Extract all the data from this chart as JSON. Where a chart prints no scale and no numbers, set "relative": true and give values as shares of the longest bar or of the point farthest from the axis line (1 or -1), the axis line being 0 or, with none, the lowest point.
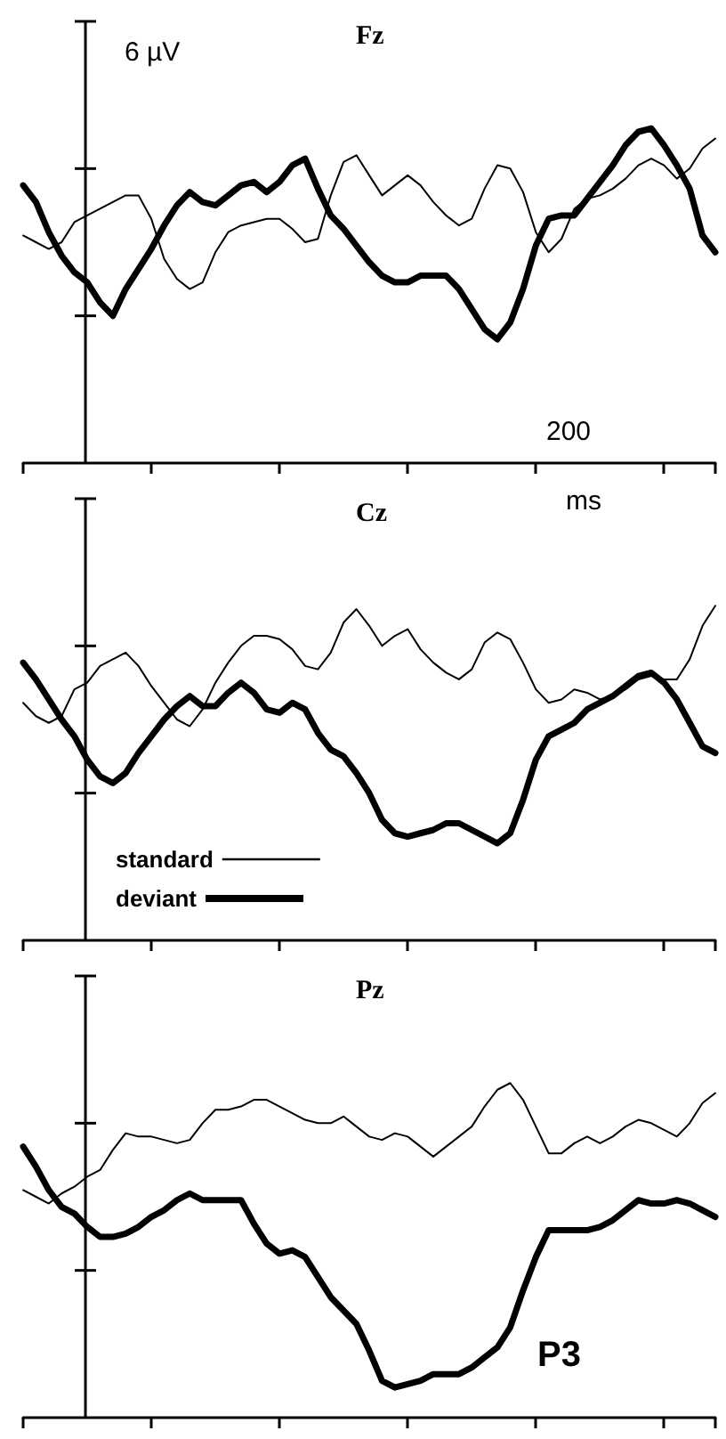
{
  "chart_data": [
    {
      "type": "line",
      "title": "Fz",
      "relative": true,
      "annotations": [
        "6 µV",
        "200"
      ],
      "categories": [
        null,
        null,
        null,
        null,
        null,
        null,
        null,
        null,
        null,
        null,
        null,
        null,
        null,
        null,
        null,
        null,
        null,
        null,
        null,
        null,
        null,
        null,
        null,
        null,
        null,
        null,
        null,
        null,
        null,
        null,
        null,
        null,
        null,
        null,
        null,
        null,
        null,
        null,
        null,
        null,
        null,
        null,
        null,
        null,
        null,
        null,
        null,
        null,
        null,
        null,
        null,
        null,
        null,
        null,
        null
      ],
      "series": [
        {
          "color": "#000000",
          "values": [
            0.68,
            0.66,
            0.64,
            0.66,
            0.72,
            0.74,
            0.76,
            0.78,
            0.8,
            0.8,
            0.73,
            0.61,
            0.55,
            0.52,
            0.54,
            0.63,
            0.69,
            0.71,
            0.72,
            0.73,
            0.73,
            0.7,
            0.66,
            0.67,
            0.8,
            0.9,
            0.92,
            0.86,
            0.8,
            0.83,
            0.86,
            0.83,
            0.78,
            0.74,
            0.71,
            0.73,
            0.82,
            0.89,
            0.88,
            0.81,
            0.69,
            0.63,
            0.67,
            0.76,
            0.79,
            0.8,
            0.82,
            0.85,
            0.89,
            0.91,
            0.89,
            0.85,
            0.88,
            0.94,
            0.97
          ]
        },
        {
          "color": "#000000",
          "values": [
            0.83,
            0.78,
            0.69,
            0.62,
            0.57,
            0.54,
            0.48,
            0.44,
            0.52,
            0.58,
            0.64,
            0.71,
            0.77,
            0.81,
            0.78,
            0.77,
            0.8,
            0.83,
            0.84,
            0.81,
            0.84,
            0.89,
            0.91,
            0.82,
            0.74,
            0.7,
            0.65,
            0.6,
            0.56,
            0.54,
            0.54,
            0.56,
            0.56,
            0.56,
            0.52,
            0.46,
            0.4,
            0.37,
            0.42,
            0.52,
            0.65,
            0.73,
            0.74,
            0.74,
            0.79,
            0.84,
            0.89,
            0.95,
            0.99,
            1.0,
            0.95,
            0.89,
            0.82,
            0.68,
            0.63
          ]
        }
      ]
    },
    {
      "type": "line",
      "title": "Cz",
      "relative": true,
      "legend": "bottom left",
      "annotations": [
        "ms"
      ],
      "categories": [
        null,
        null,
        null,
        null,
        null,
        null,
        null,
        null,
        null,
        null,
        null,
        null,
        null,
        null,
        null,
        null,
        null,
        null,
        null,
        null,
        null,
        null,
        null,
        null,
        null,
        null,
        null,
        null,
        null,
        null,
        null,
        null,
        null,
        null,
        null,
        null,
        null,
        null,
        null,
        null,
        null,
        null,
        null,
        null,
        null,
        null,
        null,
        null,
        null,
        null,
        null,
        null,
        null,
        null,
        null
      ],
      "series": [
        {
          "name": "standard",
          "color": "#000000",
          "values": [
            0.71,
            0.67,
            0.65,
            0.67,
            0.75,
            0.77,
            0.82,
            0.84,
            0.86,
            0.82,
            0.76,
            0.71,
            0.66,
            0.64,
            0.69,
            0.77,
            0.83,
            0.88,
            0.91,
            0.91,
            0.9,
            0.87,
            0.82,
            0.81,
            0.86,
            0.95,
            0.99,
            0.94,
            0.88,
            0.91,
            0.93,
            0.87,
            0.83,
            0.8,
            0.78,
            0.81,
            0.89,
            0.92,
            0.9,
            0.83,
            0.75,
            0.71,
            0.72,
            0.75,
            0.74,
            0.72,
            0.73,
            0.75,
            0.78,
            0.79,
            0.78,
            0.78,
            0.84,
            0.94,
            1.0
          ]
        },
        {
          "name": "deviant",
          "color": "#000000",
          "values": [
            0.83,
            0.78,
            0.72,
            0.66,
            0.61,
            0.54,
            0.49,
            0.47,
            0.5,
            0.56,
            0.61,
            0.66,
            0.7,
            0.73,
            0.7,
            0.7,
            0.74,
            0.77,
            0.74,
            0.69,
            0.68,
            0.71,
            0.69,
            0.62,
            0.57,
            0.55,
            0.5,
            0.44,
            0.36,
            0.32,
            0.31,
            0.32,
            0.33,
            0.35,
            0.35,
            0.33,
            0.31,
            0.29,
            0.32,
            0.42,
            0.54,
            0.61,
            0.63,
            0.65,
            0.69,
            0.71,
            0.73,
            0.76,
            0.79,
            0.8,
            0.77,
            0.72,
            0.65,
            0.58,
            0.56
          ]
        }
      ]
    },
    {
      "type": "line",
      "title": "Pz",
      "relative": true,
      "annotations": [
        "P3"
      ],
      "categories": [
        null,
        null,
        null,
        null,
        null,
        null,
        null,
        null,
        null,
        null,
        null,
        null,
        null,
        null,
        null,
        null,
        null,
        null,
        null,
        null,
        null,
        null,
        null,
        null,
        null,
        null,
        null,
        null,
        null,
        null,
        null,
        null,
        null,
        null,
        null,
        null,
        null,
        null,
        null,
        null,
        null,
        null,
        null,
        null,
        null,
        null,
        null,
        null,
        null,
        null,
        null,
        null,
        null,
        null,
        null
      ],
      "series": [
        {
          "color": "#000000",
          "values": [
            0.68,
            0.66,
            0.64,
            0.67,
            0.69,
            0.72,
            0.74,
            0.8,
            0.85,
            0.84,
            0.84,
            0.83,
            0.82,
            0.83,
            0.88,
            0.92,
            0.92,
            0.93,
            0.95,
            0.95,
            0.93,
            0.91,
            0.89,
            0.88,
            0.88,
            0.9,
            0.87,
            0.84,
            0.83,
            0.85,
            0.84,
            0.81,
            0.78,
            0.81,
            0.84,
            0.87,
            0.93,
            0.98,
            1.0,
            0.95,
            0.87,
            0.79,
            0.79,
            0.82,
            0.84,
            0.82,
            0.84,
            0.87,
            0.89,
            0.88,
            0.86,
            0.84,
            0.88,
            0.94,
            0.97
          ]
        },
        {
          "color": "#000000",
          "values": [
            0.81,
            0.75,
            0.68,
            0.63,
            0.61,
            0.57,
            0.54,
            0.54,
            0.55,
            0.57,
            0.6,
            0.62,
            0.65,
            0.67,
            0.65,
            0.65,
            0.65,
            0.65,
            0.58,
            0.52,
            0.49,
            0.5,
            0.48,
            0.42,
            0.36,
            0.32,
            0.28,
            0.2,
            0.11,
            0.09,
            0.1,
            0.11,
            0.13,
            0.13,
            0.13,
            0.15,
            0.18,
            0.21,
            0.27,
            0.38,
            0.48,
            0.56,
            0.56,
            0.56,
            0.56,
            0.57,
            0.59,
            0.62,
            0.65,
            0.64,
            0.64,
            0.65,
            0.64,
            0.62,
            0.6
          ]
        }
      ]
    }
  ]
}
